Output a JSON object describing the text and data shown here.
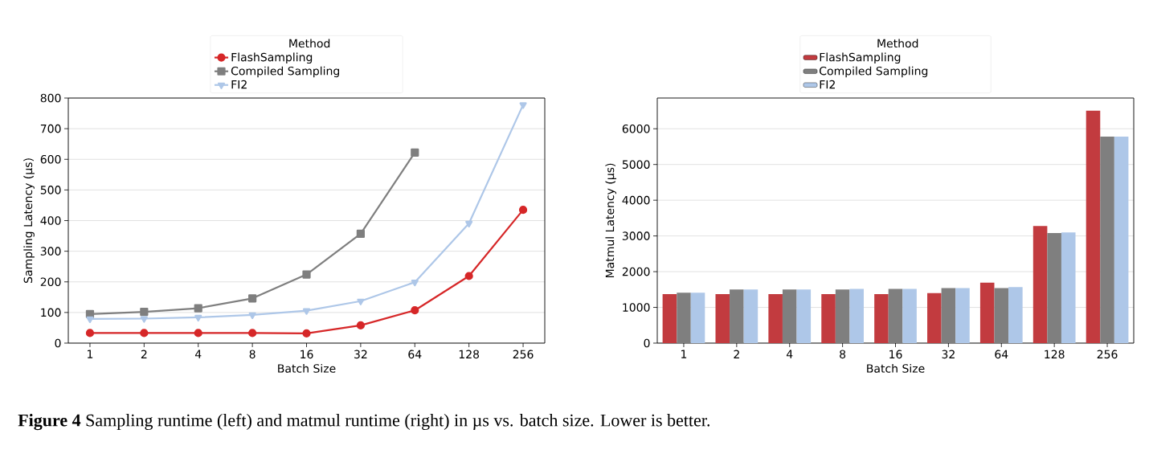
{
  "chart_data": [
    {
      "type": "line",
      "xlabel": "Batch Size",
      "ylabel": "Sampling Latency (µs)",
      "legend_title": "Method",
      "legend": "top",
      "grid": "y",
      "categories": [
        "1",
        "2",
        "4",
        "8",
        "16",
        "32",
        "64",
        "128",
        "256"
      ],
      "ylim": [
        0,
        800
      ],
      "yticks": [
        0,
        100,
        200,
        300,
        400,
        500,
        600,
        700,
        800
      ],
      "series": [
        {
          "name": "FlashSampling",
          "color": "#d62728",
          "marker": "circle",
          "values": [
            33,
            33,
            33,
            33,
            32,
            58,
            107,
            219,
            435
          ]
        },
        {
          "name": "Compiled Sampling",
          "color": "#7f7f7f",
          "marker": "square",
          "values": [
            95,
            102,
            114,
            146,
            224,
            357,
            622,
            null,
            null
          ]
        },
        {
          "name": "FI2",
          "color": "#aec7e8",
          "marker": "triangle",
          "values": [
            79,
            80,
            84,
            92,
            106,
            137,
            199,
            391,
            778
          ]
        }
      ],
      "annotations": [
        "**Figure 4** Sampling runtime (left) and matmul runtime (right) in µs vs. batch size. Lower is better."
      ]
    },
    {
      "type": "bar",
      "xlabel": "Batch Size",
      "ylabel": "Matmul Latency (µs)",
      "legend_title": "Method",
      "legend": "top",
      "grid": "y",
      "categories": [
        "1",
        "2",
        "4",
        "8",
        "16",
        "32",
        "64",
        "128",
        "256"
      ],
      "ylim": [
        0,
        6860
      ],
      "yticks": [
        0,
        1000,
        2000,
        3000,
        4000,
        5000,
        6000
      ],
      "series": [
        {
          "name": "FlashSampling",
          "color": "#c23b3f",
          "values": [
            1370,
            1370,
            1370,
            1370,
            1370,
            1400,
            1690,
            3280,
            6510
          ]
        },
        {
          "name": "Compiled Sampling",
          "color": "#7f7f7f",
          "values": [
            1410,
            1500,
            1500,
            1500,
            1520,
            1540,
            1540,
            3080,
            5780
          ]
        },
        {
          "name": "FI2",
          "color": "#aec7e8",
          "values": [
            1410,
            1500,
            1500,
            1520,
            1520,
            1540,
            1570,
            3100,
            5780
          ]
        }
      ]
    }
  ]
}
